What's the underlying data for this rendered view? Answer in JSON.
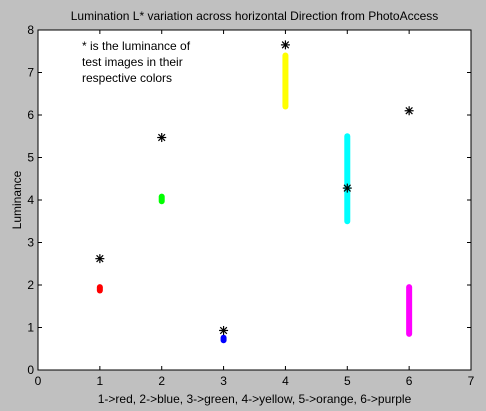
{
  "chart_data": {
    "type": "scatter",
    "title": "Lumination L* variation across horizontal Direction from PhotoAccess",
    "xlabel": "1->red, 2->blue, 3->green, 4->yellow, 5->orange, 6->purple",
    "ylabel": "Luminance",
    "xlim": [
      0,
      7
    ],
    "ylim": [
      0,
      8
    ],
    "xticks": [
      "0",
      "1",
      "2",
      "3",
      "4",
      "5",
      "6",
      "7"
    ],
    "yticks": [
      "0",
      "1",
      "2",
      "3",
      "4",
      "5",
      "6",
      "7",
      "8"
    ],
    "grid": false,
    "annotation": [
      "* is the luminance of",
      "test images in their",
      "respective colors"
    ],
    "ranges": [
      {
        "x": 1,
        "y_min": 1.87,
        "y_max": 1.95,
        "color": "#ff0000"
      },
      {
        "x": 2,
        "y_min": 3.97,
        "y_max": 4.08,
        "color": "#00ff00"
      },
      {
        "x": 3,
        "y_min": 0.7,
        "y_max": 0.76,
        "color": "#0000ff"
      },
      {
        "x": 4,
        "y_min": 6.2,
        "y_max": 7.4,
        "color": "#ffff00"
      },
      {
        "x": 5,
        "y_min": 3.5,
        "y_max": 5.5,
        "color": "#00ffff"
      },
      {
        "x": 6,
        "y_min": 0.85,
        "y_max": 1.95,
        "color": "#ff00ff"
      }
    ],
    "star_points": [
      {
        "x": 1,
        "y": 2.62
      },
      {
        "x": 2,
        "y": 5.47
      },
      {
        "x": 3,
        "y": 0.93
      },
      {
        "x": 4,
        "y": 7.65
      },
      {
        "x": 5,
        "y": 4.28
      },
      {
        "x": 6,
        "y": 6.1
      }
    ]
  }
}
